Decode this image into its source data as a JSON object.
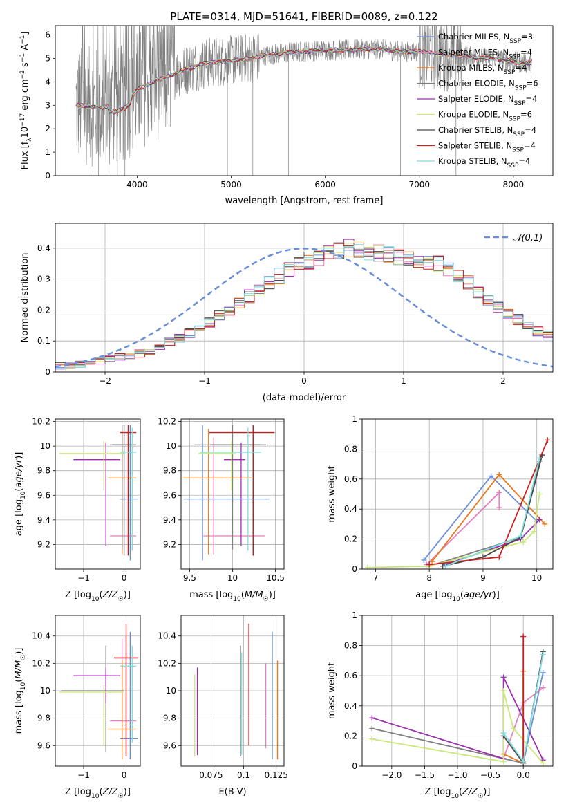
{
  "figure_title": "PLATE=0314, MJD=51641, FIBERID=0089, z=0.122",
  "colors": {
    "miles_chabrier": "#6a8fd8",
    "miles_salpeter": "#e87fbf",
    "miles_kroupa": "#e6771a",
    "elodie_chabrier": "#7f7f7f",
    "elodie_salpeter": "#9b2fae",
    "elodie_kroupa": "#c8e87a",
    "stelib_chabrier": "#4a4a4a",
    "stelib_salpeter": "#c81e1e",
    "stelib_kroupa": "#7fdede",
    "normal_curve": "#6a8fd8"
  },
  "chart_data": [
    {
      "id": "spectrum",
      "type": "line",
      "title": "PLATE=0314, MJD=51641, FIBERID=0089, z=0.122",
      "xlabel": "wavelength [Angstrom, rest frame]",
      "ylabel": "Flux [f_λ 10^-17 erg cm^-2 s^-1 A^-1]",
      "xlim": [
        3130,
        8420
      ],
      "ylim": [
        0,
        6.4
      ],
      "xticks": [
        4000,
        5000,
        6000,
        7000,
        8000
      ],
      "yticks": [
        0,
        1,
        2,
        3,
        4,
        5,
        6
      ],
      "legend": [
        {
          "label": "Chabrier MILES, N_SSP=3",
          "color": "#6a8fd8"
        },
        {
          "label": "Salpeter MILES, N_SSP=4",
          "color": "#e87fbf"
        },
        {
          "label": "Kroupa MILES, N_SSP=4",
          "color": "#e6771a"
        },
        {
          "label": "Chabrier ELODIE, N_SSP=6",
          "color": "#7f7f7f"
        },
        {
          "label": "Salpeter ELODIE, N_SSP=4",
          "color": "#9b2fae"
        },
        {
          "label": "Kroupa ELODIE, N_SSP=6",
          "color": "#c8e87a"
        },
        {
          "label": "Chabrier STELIB, N_SSP=4",
          "color": "#4a4a4a"
        },
        {
          "label": "Salpeter STELIB, N_SSP=4",
          "color": "#c81e1e"
        },
        {
          "label": "Kroupa STELIB, N_SSP=4",
          "color": "#7fdede"
        }
      ],
      "data_envelope": {
        "x": [
          3350,
          3500,
          3600,
          3700,
          3800,
          3900,
          4000,
          4100,
          4200,
          4400,
          4600,
          4800,
          5000,
          5200,
          5400,
          5600,
          5800,
          6000,
          6200,
          6400,
          6600,
          6800,
          7000,
          7200,
          7400,
          7600,
          7800,
          8000,
          8200
        ],
        "y": [
          3.0,
          2.95,
          2.9,
          2.95,
          3.0,
          3.2,
          3.65,
          3.85,
          4.05,
          4.35,
          4.65,
          4.85,
          4.9,
          5.0,
          5.15,
          5.25,
          5.3,
          5.35,
          5.35,
          5.4,
          5.4,
          5.3,
          5.3,
          5.2,
          5.15,
          5.05,
          5.0,
          4.85,
          4.8
        ]
      }
    },
    {
      "id": "residual_hist",
      "type": "histogram",
      "xlabel": "(data-model)/error",
      "ylabel": "Normed distribution",
      "xlim": [
        -2.5,
        2.5
      ],
      "ylim": [
        0,
        0.48
      ],
      "xticks": [
        -2,
        -1,
        0,
        1,
        2
      ],
      "yticks": [
        0.0,
        0.1,
        0.2,
        0.3,
        0.4
      ],
      "legend": [
        {
          "label": "𝒩(0,1)",
          "color": "#6a8fd8",
          "style": "dashed"
        }
      ],
      "bin_width": 0.1,
      "bin_start": -2.5,
      "mean_heights": [
        0.02,
        0.02,
        0.025,
        0.03,
        0.035,
        0.045,
        0.05,
        0.055,
        0.06,
        0.065,
        0.08,
        0.095,
        0.11,
        0.125,
        0.145,
        0.16,
        0.18,
        0.2,
        0.22,
        0.245,
        0.27,
        0.29,
        0.31,
        0.33,
        0.35,
        0.36,
        0.37,
        0.385,
        0.39,
        0.4,
        0.395,
        0.39,
        0.385,
        0.38,
        0.375,
        0.37,
        0.365,
        0.36,
        0.35,
        0.335,
        0.31,
        0.29,
        0.26,
        0.23,
        0.21,
        0.19,
        0.17,
        0.15,
        0.13,
        0.115,
        0.1,
        0.09,
        0.08,
        0.07,
        0.065,
        0.06,
        0.055,
        0.05,
        0.045,
        0.04,
        0.035,
        0.03,
        0.025,
        0.025,
        0.02,
        0.02
      ],
      "normal_curve": {
        "mu": 0,
        "sigma": 1
      }
    },
    {
      "id": "age_vs_Z",
      "type": "errorbar",
      "xlabel": "Z [log10(Z/Z☉)]",
      "ylabel": "age [log10(age/yr)]",
      "xlim": [
        -1.7,
        0.4
      ],
      "ylim": [
        9.0,
        10.22
      ],
      "xticks": [
        -1,
        0
      ],
      "yticks": [
        9.2,
        9.4,
        9.6,
        9.8,
        10.0,
        10.2
      ],
      "points": [
        {
          "x": 0.15,
          "y": 9.57,
          "xerr": [
            0.25,
            0.2
          ],
          "yerr": [
            0.5,
            0.6
          ],
          "color": "#6a8fd8"
        },
        {
          "x": -0.05,
          "y": 9.27,
          "xerr": [
            0.3,
            0.35
          ],
          "yerr": [
            0.15,
            0.8
          ],
          "color": "#e87fbf"
        },
        {
          "x": -0.05,
          "y": 9.74,
          "xerr": [
            0.35,
            0.35
          ],
          "yerr": [
            0.62,
            0.4
          ],
          "color": "#e6771a"
        },
        {
          "x": -0.05,
          "y": 10.01,
          "xerr": [
            0.3,
            0.3
          ],
          "yerr": [
            0.85,
            0.16
          ],
          "color": "#7f7f7f"
        },
        {
          "x": -0.45,
          "y": 9.89,
          "xerr": [
            0.8,
            0.35
          ],
          "yerr": [
            0.7,
            0.14
          ],
          "color": "#9b2fae"
        },
        {
          "x": -0.5,
          "y": 9.94,
          "xerr": [
            1.1,
            0.5
          ],
          "yerr": [
            0.3,
            0.1
          ],
          "color": "#c8e87a"
        },
        {
          "x": 0.0,
          "y": 10.01,
          "xerr": [
            0.3,
            0.3
          ],
          "yerr": [
            0.9,
            0.16
          ],
          "color": "#4a4a4a"
        },
        {
          "x": 0.1,
          "y": 10.11,
          "xerr": [
            0.2,
            0.2
          ],
          "yerr": [
            1.0,
            0.06
          ],
          "color": "#c81e1e"
        },
        {
          "x": 0.2,
          "y": 9.95,
          "xerr": [
            0.3,
            0.1
          ],
          "yerr": [
            0.8,
            0.2
          ],
          "color": "#7fdede"
        }
      ]
    },
    {
      "id": "age_vs_mass",
      "type": "errorbar",
      "xlabel": "mass [log10(M/M☉)]",
      "ylabel": "",
      "xlim": [
        9.4,
        10.6
      ],
      "ylim": [
        9.0,
        10.22
      ],
      "xticks": [
        9.5,
        10.0,
        10.5
      ],
      "yticks": [
        9.2,
        9.4,
        9.6,
        9.8,
        10.0,
        10.2
      ],
      "points": [
        {
          "x": 9.65,
          "y": 9.57,
          "xerr": [
            0.22,
            0.78
          ],
          "yerr": [
            0.5,
            0.6
          ],
          "color": "#6a8fd8"
        },
        {
          "x": 9.78,
          "y": 9.27,
          "xerr": [
            0.12,
            0.6
          ],
          "yerr": [
            0.15,
            0.8
          ],
          "color": "#e87fbf"
        },
        {
          "x": 9.72,
          "y": 9.74,
          "xerr": [
            0.3,
            0.5
          ],
          "yerr": [
            0.62,
            0.4
          ],
          "color": "#e6771a"
        },
        {
          "x": 10.0,
          "y": 10.01,
          "xerr": [
            0.45,
            0.33
          ],
          "yerr": [
            0.85,
            0.16
          ],
          "color": "#7f7f7f"
        },
        {
          "x": 10.1,
          "y": 9.89,
          "xerr": [
            0.2,
            0.05
          ],
          "yerr": [
            0.7,
            0.14
          ],
          "color": "#9b2fae"
        },
        {
          "x": 9.99,
          "y": 9.94,
          "xerr": [
            0.39,
            0.05
          ],
          "yerr": [
            0.3,
            0.1
          ],
          "color": "#c8e87a"
        },
        {
          "x": 10.24,
          "y": 10.01,
          "xerr": [
            0.5,
            0.15
          ],
          "yerr": [
            0.9,
            0.16
          ],
          "color": "#4a4a4a"
        },
        {
          "x": 10.24,
          "y": 10.11,
          "xerr": [
            0.51,
            0.25
          ],
          "yerr": [
            1.0,
            0.06
          ],
          "color": "#c81e1e"
        },
        {
          "x": 10.18,
          "y": 9.95,
          "xerr": [
            0.56,
            0.15
          ],
          "yerr": [
            0.8,
            0.2
          ],
          "color": "#7fdede"
        }
      ]
    },
    {
      "id": "weight_vs_age",
      "type": "line",
      "xlabel": "age [log10(age/yr)]",
      "ylabel": "mass weight",
      "xlim": [
        6.75,
        10.3
      ],
      "ylim": [
        0,
        1.0
      ],
      "xticks": [
        7,
        8,
        9,
        10
      ],
      "yticks": [
        0.0,
        0.2,
        0.4,
        0.6,
        0.8,
        1.0
      ],
      "series": [
        {
          "color": "#6a8fd8",
          "x": [
            7.9,
            9.15,
            10.0
          ],
          "y": [
            0.06,
            0.62,
            0.32
          ]
        },
        {
          "color": "#e87fbf",
          "x": [
            7.95,
            9.3,
            9.3
          ],
          "y": [
            0.03,
            0.51,
            0.41
          ]
        },
        {
          "color": "#e6771a",
          "x": [
            8.05,
            9.3,
            10.15
          ],
          "y": [
            0.05,
            0.63,
            0.3
          ]
        },
        {
          "color": "#7f7f7f",
          "x": [
            8.0,
            9.7,
            10.05
          ],
          "y": [
            0.02,
            0.21,
            0.72
          ]
        },
        {
          "color": "#9b2fae",
          "x": [
            8.3,
            9.7,
            10.05
          ],
          "y": [
            0.03,
            0.2,
            0.33
          ]
        },
        {
          "color": "#c8e87a",
          "x": [
            6.85,
            8.0,
            9.75,
            9.95,
            10.05
          ],
          "y": [
            0.01,
            0.02,
            0.18,
            0.25,
            0.5
          ]
        },
        {
          "color": "#4a4a4a",
          "x": [
            8.25,
            9.0,
            9.7,
            10.1
          ],
          "y": [
            0.02,
            0.08,
            0.21,
            0.76
          ]
        },
        {
          "color": "#c81e1e",
          "x": [
            8.0,
            9.3,
            10.2
          ],
          "y": [
            0.03,
            0.08,
            0.86
          ]
        },
        {
          "color": "#7fdede",
          "x": [
            8.3,
            9.7,
            10.05
          ],
          "y": [
            0.02,
            0.22,
            0.74
          ]
        }
      ]
    },
    {
      "id": "mass_vs_Z",
      "type": "errorbar",
      "xlabel": "Z [log10(Z/Z☉)]",
      "ylabel": "mass [log10(M/M☉)]",
      "xlim": [
        -1.7,
        0.4
      ],
      "ylim": [
        9.45,
        10.55
      ],
      "xticks": [
        -1,
        0
      ],
      "yticks": [
        9.6,
        9.8,
        10.0,
        10.2,
        10.4
      ],
      "points": [
        {
          "x": 0.15,
          "y": 9.65,
          "xerr": [
            0.25,
            0.2
          ],
          "yerr": [
            0.15,
            0.78
          ],
          "color": "#6a8fd8"
        },
        {
          "x": -0.05,
          "y": 9.78,
          "xerr": [
            0.3,
            0.35
          ],
          "yerr": [
            0.12,
            0.6
          ],
          "color": "#e87fbf"
        },
        {
          "x": -0.05,
          "y": 9.72,
          "xerr": [
            0.35,
            0.35
          ],
          "yerr": [
            0.22,
            0.5
          ],
          "color": "#e6771a"
        },
        {
          "x": -0.45,
          "y": 10.0,
          "xerr": [
            1.1,
            0.45
          ],
          "yerr": [
            0.45,
            0.33
          ],
          "color": "#7f7f7f"
        },
        {
          "x": -0.45,
          "y": 10.11,
          "xerr": [
            0.8,
            0.35
          ],
          "yerr": [
            0.2,
            0.06
          ],
          "color": "#9b2fae"
        },
        {
          "x": -0.5,
          "y": 9.99,
          "xerr": [
            1.1,
            0.5
          ],
          "yerr": [
            0.39,
            0.05
          ],
          "color": "#c8e87a"
        },
        {
          "x": 0.05,
          "y": 10.24,
          "xerr": [
            0.3,
            0.3
          ],
          "yerr": [
            0.72,
            0.16
          ],
          "color": "#4a4a4a"
        },
        {
          "x": 0.05,
          "y": 10.24,
          "xerr": [
            0.3,
            0.3
          ],
          "yerr": [
            0.72,
            0.25
          ],
          "color": "#c81e1e"
        },
        {
          "x": 0.2,
          "y": 10.18,
          "xerr": [
            0.3,
            0.1
          ],
          "yerr": [
            0.56,
            0.15
          ],
          "color": "#7fdede"
        }
      ]
    },
    {
      "id": "mass_vs_EBV",
      "type": "errorbar",
      "xlabel": "E(B-V)",
      "ylabel": "",
      "xlim": [
        0.052,
        0.131
      ],
      "ylim": [
        9.45,
        10.55
      ],
      "xticks": [
        0.075,
        0.1,
        0.125
      ],
      "yticks": [
        9.6,
        9.8,
        10.0,
        10.2,
        10.4
      ],
      "points": [
        {
          "x": 0.122,
          "y": 9.65,
          "yerr": [
            0.15,
            0.78
          ],
          "color": "#6a8fd8"
        },
        {
          "x": 0.117,
          "y": 9.78,
          "yerr": [
            0.2,
            0.42
          ],
          "color": "#e87fbf"
        },
        {
          "x": 0.126,
          "y": 9.72,
          "yerr": [
            0.22,
            0.5
          ],
          "color": "#e6771a"
        },
        {
          "x": 0.0625,
          "y": 9.62,
          "yerr": [
            0.1,
            0.5
          ],
          "color": "#c8e87a"
        },
        {
          "x": 0.0645,
          "y": 9.8,
          "yerr": [
            0.27,
            0.37
          ],
          "color": "#9b2fae"
        },
        {
          "x": 0.0975,
          "y": 10.0,
          "yerr": [
            0.48,
            0.33
          ],
          "color": "#4a4a4a"
        },
        {
          "x": 0.0985,
          "y": 9.9,
          "yerr": [
            0.37,
            0.38
          ],
          "color": "#7fdede"
        },
        {
          "x": 0.104,
          "y": 10.0,
          "yerr": [
            0.4,
            0.49
          ],
          "color": "#c81e1e"
        }
      ]
    },
    {
      "id": "weight_vs_Z",
      "type": "line",
      "xlabel": "Z [log10(Z/Z☉)]",
      "ylabel": "mass weight",
      "xlim": [
        -2.45,
        0.45
      ],
      "ylim": [
        0,
        1.0
      ],
      "xticks": [
        -2.0,
        -1.5,
        -1.0,
        -0.5,
        0.0
      ],
      "yticks": [
        0.0,
        0.2,
        0.4,
        0.6,
        0.8,
        1.0
      ],
      "series": [
        {
          "color": "#6a8fd8",
          "x": [
            -0.3,
            0.0,
            0.3
          ],
          "y": [
            0.05,
            0.02,
            0.62
          ]
        },
        {
          "color": "#e87fbf",
          "x": [
            -0.3,
            0.0,
            0.3
          ],
          "y": [
            0.05,
            0.42,
            0.52
          ]
        },
        {
          "color": "#e6771a",
          "x": [
            -0.3,
            0.0,
            0.0
          ],
          "y": [
            0.08,
            0.02,
            0.63
          ]
        },
        {
          "color": "#7f7f7f",
          "x": [
            -2.3,
            -0.3,
            0.0,
            0.3
          ],
          "y": [
            0.25,
            0.05,
            0.02,
            0.76
          ]
        },
        {
          "color": "#9b2fae",
          "x": [
            -2.3,
            -0.3,
            -0.3,
            0.3
          ],
          "y": [
            0.32,
            0.05,
            0.59,
            0.04
          ]
        },
        {
          "color": "#c8e87a",
          "x": [
            -2.3,
            -0.3,
            -0.3,
            -0.15,
            0.3
          ],
          "y": [
            0.18,
            0.03,
            0.5,
            0.25,
            0.02
          ]
        },
        {
          "color": "#4a4a4a",
          "x": [
            -0.3,
            0.0,
            0.3
          ],
          "y": [
            0.2,
            0.02,
            0.76
          ]
        },
        {
          "color": "#c81e1e",
          "x": [
            0.0,
            0.0
          ],
          "y": [
            0.03,
            0.86
          ]
        },
        {
          "color": "#7fdede",
          "x": [
            -0.3,
            0.0,
            0.3
          ],
          "y": [
            0.22,
            0.03,
            0.74
          ]
        }
      ]
    }
  ]
}
